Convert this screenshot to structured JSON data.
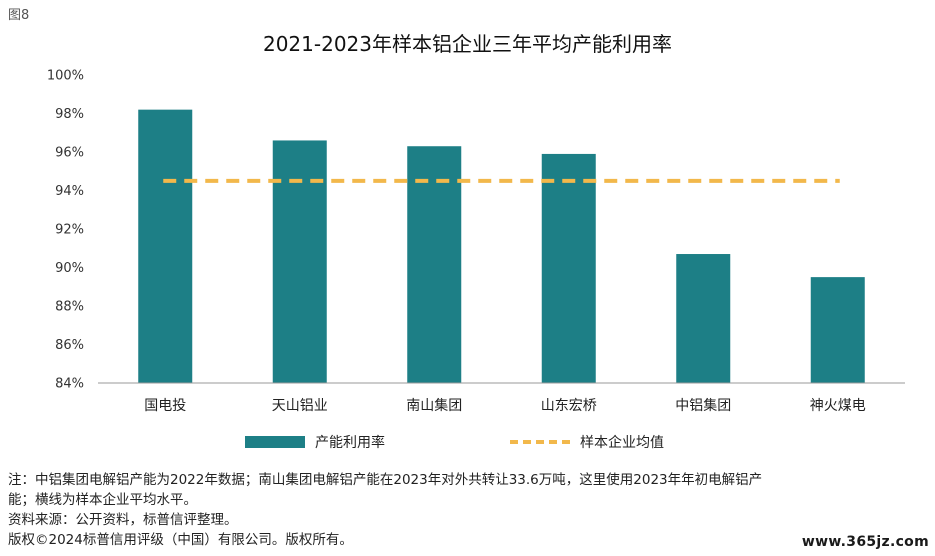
{
  "figure_label": "图8",
  "chart_data": {
    "type": "bar",
    "title": "2021-2023年样本铝企业三年平均产能利用率",
    "categories": [
      "国电投",
      "天山铝业",
      "南山集团",
      "山东宏桥",
      "中铝集团",
      "神火煤电"
    ],
    "series": [
      {
        "name": "产能利用率",
        "values": [
          98.2,
          96.6,
          96.3,
          95.9,
          90.7,
          89.5
        ],
        "kind": "bar",
        "color": "#1d7f86"
      },
      {
        "name": "样本企业均值",
        "value": 94.5,
        "kind": "hline-dashed",
        "color": "#f2b84b"
      }
    ],
    "ylim": [
      84,
      100
    ],
    "yticks": [
      84,
      86,
      88,
      90,
      92,
      94,
      96,
      98,
      100
    ],
    "ytick_labels": [
      "84%",
      "86%",
      "88%",
      "90%",
      "92%",
      "94%",
      "96%",
      "98%",
      "100%"
    ],
    "legend_position": "bottom",
    "grid": false
  },
  "notes": {
    "line1": "注：中铝集团电解铝产能为2022年数据；南山集团电解铝产能在2023年对外共转让33.6万吨，这里使用2023年年初电解铝产",
    "line2": "能；横线为样本企业平均水平。",
    "source": "资料来源：公开资料，标普信评整理。",
    "copyright": "版权©2024标普信用评级（中国）有限公司。版权所有。"
  },
  "watermark": "www.365jz.com"
}
